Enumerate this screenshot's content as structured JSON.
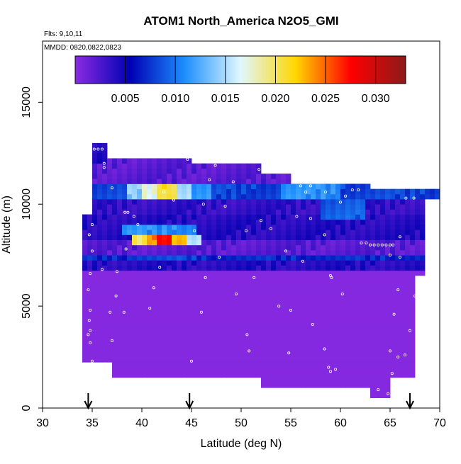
{
  "chart_data": {
    "type": "heatmap",
    "title": "ATOM1 North_America N2O5_GMI",
    "subtitle_flights": "Flts: 9,10,11",
    "subtitle_dates": "MMDD: 0820,0822,0823",
    "xlabel": "Latitude (deg N)",
    "ylabel": "Altitude (m)",
    "xlim": [
      30,
      70
    ],
    "ylim": [
      0,
      18000
    ],
    "x_ticks": [
      "30",
      "35",
      "40",
      "45",
      "50",
      "55",
      "60",
      "65",
      "70"
    ],
    "y_ticks": [
      "0",
      "5000",
      "10000",
      "15000"
    ],
    "colorbar": {
      "range": [
        0,
        0.033
      ],
      "tick_labels": [
        "0.005",
        "0.010",
        "0.015",
        "0.020",
        "0.025",
        "0.030"
      ],
      "colors": [
        "#8a2be2",
        "#0000b4",
        "#1e90ff",
        "#e0f8ff",
        "#ffd700",
        "#ff0000",
        "#8b1a1a"
      ]
    },
    "arrows_latitude": [
      34.6,
      44.8,
      67.0
    ],
    "grid": false,
    "mask": [
      {
        "lat": [
          34.0,
          37.0
        ],
        "alt": [
          2200,
          3000
        ]
      },
      {
        "lat": [
          34.0,
          38.0
        ],
        "alt": [
          3000,
          9500
        ]
      },
      {
        "lat": [
          38.0,
          45.0
        ],
        "alt": [
          3000,
          12300
        ]
      },
      {
        "lat": [
          36.0,
          38.0
        ],
        "alt": [
          2200,
          9500
        ]
      },
      {
        "lat": [
          35.0,
          36.5
        ],
        "alt": [
          9500,
          13000
        ]
      },
      {
        "lat": [
          36.5,
          38.0
        ],
        "alt": [
          9500,
          12300
        ]
      },
      {
        "lat": [
          37.0,
          45.0
        ],
        "alt": [
          1500,
          3000
        ]
      },
      {
        "lat": [
          45.0,
          52.0
        ],
        "alt": [
          1500,
          11900
        ]
      },
      {
        "lat": [
          52.0,
          55.0
        ],
        "alt": [
          1000,
          11500
        ]
      },
      {
        "lat": [
          55.0,
          63.0
        ],
        "alt": [
          1000,
          11000
        ]
      },
      {
        "lat": [
          63.0,
          65.0
        ],
        "alt": [
          500,
          10800
        ]
      },
      {
        "lat": [
          65.0,
          67.5
        ],
        "alt": [
          1500,
          10800
        ]
      },
      {
        "lat": [
          67.5,
          70.0
        ],
        "alt": [
          10300,
          10800
        ]
      },
      {
        "lat": [
          67.0,
          68.5
        ],
        "alt": [
          6500,
          10300
        ]
      }
    ],
    "layers": [
      {
        "alt": [
          0,
          6700
        ],
        "value": 0.0002
      },
      {
        "alt": [
          6700,
          7200
        ],
        "value": 0.004
      },
      {
        "alt": [
          7200,
          7600
        ],
        "value": 0.007
      },
      {
        "alt": [
          7600,
          8300
        ],
        "value": 0.002
      },
      {
        "alt": [
          8300,
          9400
        ],
        "value": 0.004
      },
      {
        "alt": [
          9400,
          10300
        ],
        "value": 0.0035
      },
      {
        "alt": [
          10300,
          11000
        ],
        "value": 0.008
      },
      {
        "alt": [
          11000,
          13000
        ],
        "value": 0.002
      }
    ],
    "hotspots": [
      {
        "lat": [
          38.5,
          40.0
        ],
        "alt": [
          10300,
          11000
        ],
        "value": 0.014
      },
      {
        "lat": [
          40.0,
          41.5
        ],
        "alt": [
          10300,
          11000
        ],
        "value": 0.017
      },
      {
        "lat": [
          41.5,
          43.5
        ],
        "alt": [
          10300,
          11000
        ],
        "value": 0.021
      },
      {
        "lat": [
          43.5,
          45.0
        ],
        "alt": [
          10300,
          11000
        ],
        "value": 0.015
      },
      {
        "lat": [
          45.0,
          47.0
        ],
        "alt": [
          10300,
          11000
        ],
        "value": 0.011
      },
      {
        "lat": [
          39.0,
          40.5
        ],
        "alt": [
          7900,
          8400
        ],
        "value": 0.02
      },
      {
        "lat": [
          40.5,
          41.5
        ],
        "alt": [
          7900,
          8400
        ],
        "value": 0.024
      },
      {
        "lat": [
          41.5,
          43.0
        ],
        "alt": [
          7900,
          8400
        ],
        "value": 0.028
      },
      {
        "lat": [
          43.0,
          44.5
        ],
        "alt": [
          7900,
          8400
        ],
        "value": 0.023
      },
      {
        "lat": [
          44.5,
          46.0
        ],
        "alt": [
          7900,
          8400
        ],
        "value": 0.015
      },
      {
        "lat": [
          38.0,
          45.5
        ],
        "alt": [
          8400,
          8900
        ],
        "value": 0.011
      },
      {
        "lat": [
          38.5,
          45.5
        ],
        "alt": [
          7200,
          7600
        ],
        "value": 0.008
      },
      {
        "lat": [
          54.0,
          60.0
        ],
        "alt": [
          10300,
          11100
        ],
        "value": 0.011
      },
      {
        "lat": [
          58.0,
          62.5
        ],
        "alt": [
          9200,
          10300
        ],
        "value": 0.009
      },
      {
        "lat": [
          35.0,
          36.5
        ],
        "alt": [
          12000,
          13000
        ],
        "value": 0.004
      }
    ],
    "flight_points": [
      [
        35.2,
        12700
      ],
      [
        35.6,
        12700
      ],
      [
        36.0,
        12700
      ],
      [
        36.2,
        12000
      ],
      [
        36.2,
        11800
      ],
      [
        34.6,
        11300
      ],
      [
        34.7,
        10900
      ],
      [
        34.8,
        10000
      ],
      [
        35.0,
        9000
      ],
      [
        34.7,
        8500
      ],
      [
        35.0,
        7700
      ],
      [
        34.8,
        6600
      ],
      [
        34.6,
        5800
      ],
      [
        34.8,
        4800
      ],
      [
        34.7,
        4300
      ],
      [
        34.8,
        3800
      ],
      [
        34.6,
        3600
      ],
      [
        34.8,
        3200
      ],
      [
        35.0,
        2300
      ],
      [
        36.0,
        6800
      ],
      [
        36.8,
        4700
      ],
      [
        37.0,
        3300
      ],
      [
        37.5,
        6700
      ],
      [
        38.2,
        4700
      ],
      [
        37.4,
        5500
      ],
      [
        38.3,
        9600
      ],
      [
        38.6,
        9600
      ],
      [
        39.2,
        9400
      ],
      [
        39.6,
        9000
      ],
      [
        37.0,
        10800
      ],
      [
        38.4,
        7800
      ],
      [
        40.8,
        4900
      ],
      [
        41.2,
        5900
      ],
      [
        41.8,
        6900
      ],
      [
        42.2,
        10600
      ],
      [
        43.2,
        10200
      ],
      [
        44.6,
        12200
      ],
      [
        45.0,
        2300
      ],
      [
        45.3,
        8700
      ],
      [
        46.2,
        10000
      ],
      [
        46.4,
        6400
      ],
      [
        46.0,
        4700
      ],
      [
        46.8,
        11200
      ],
      [
        47.4,
        11900
      ],
      [
        47.8,
        7400
      ],
      [
        48.4,
        9900
      ],
      [
        49.2,
        11100
      ],
      [
        49.5,
        5600
      ],
      [
        50.5,
        8700
      ],
      [
        50.8,
        2800
      ],
      [
        50.6,
        3600
      ],
      [
        51.3,
        6400
      ],
      [
        51.8,
        11700
      ],
      [
        52.0,
        9200
      ],
      [
        53.0,
        8800
      ],
      [
        53.8,
        5000
      ],
      [
        54.5,
        7700
      ],
      [
        54.8,
        2700
      ],
      [
        55.0,
        4800
      ],
      [
        55.6,
        9400
      ],
      [
        56.0,
        10900
      ],
      [
        56.5,
        10600
      ],
      [
        57.0,
        10900
      ],
      [
        56.2,
        7200
      ],
      [
        57.2,
        4100
      ],
      [
        57.0,
        9300
      ],
      [
        58.4,
        8500
      ],
      [
        58.5,
        10600
      ],
      [
        59.0,
        6500
      ],
      [
        59.1,
        6400
      ],
      [
        58.4,
        2900
      ],
      [
        58.8,
        2000
      ],
      [
        59.0,
        1800
      ],
      [
        59.5,
        1900
      ],
      [
        60.0,
        10100
      ],
      [
        60.5,
        10400
      ],
      [
        60.2,
        5600
      ],
      [
        61.2,
        10700
      ],
      [
        61.8,
        10700
      ],
      [
        62.1,
        8100
      ],
      [
        62.6,
        8100
      ],
      [
        63.0,
        8000
      ],
      [
        63.4,
        8000
      ],
      [
        63.8,
        8000
      ],
      [
        64.2,
        8000
      ],
      [
        64.6,
        8000
      ],
      [
        65.0,
        8000
      ],
      [
        65.3,
        8000
      ],
      [
        65.0,
        7500
      ],
      [
        66.0,
        7400
      ],
      [
        65.8,
        5800
      ],
      [
        65.4,
        4600
      ],
      [
        66.0,
        8400
      ],
      [
        66.6,
        10300
      ],
      [
        67.4,
        10300
      ],
      [
        65.0,
        2800
      ],
      [
        65.2,
        1700
      ],
      [
        65.8,
        2500
      ],
      [
        63.8,
        900
      ],
      [
        64.8,
        700
      ],
      [
        67.5,
        5500
      ],
      [
        67.0,
        3800
      ],
      [
        66.5,
        2600
      ]
    ]
  }
}
